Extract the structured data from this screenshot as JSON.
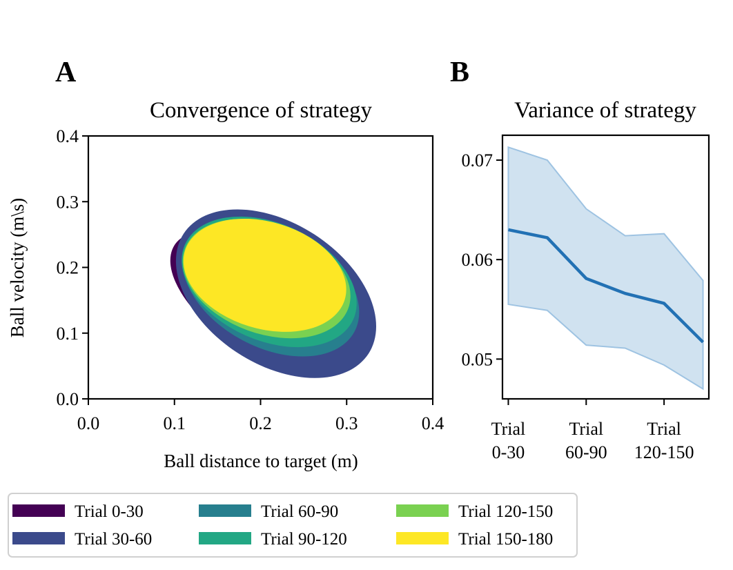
{
  "chart_data": [
    {
      "panel": "A",
      "type": "ellipse",
      "title": "Convergence of strategy",
      "xlabel": "Ball distance to target (m)",
      "ylabel": "Ball velocity (m\\s)",
      "xlim": [
        0.0,
        0.4
      ],
      "ylim": [
        0.0,
        0.4
      ],
      "xticks": [
        "0.0",
        "0.1",
        "0.2",
        "0.3",
        "0.4"
      ],
      "yticks": [
        "0.0",
        "0.1",
        "0.2",
        "0.3",
        "0.4"
      ],
      "series": [
        {
          "name": "Trial 0-30",
          "color": "#440154",
          "center": [
            0.205,
            0.145
          ],
          "semi_major": 0.125,
          "semi_minor": 0.06,
          "angle_deg": -33
        },
        {
          "name": "Trial 30-60",
          "color": "#3b4a8b",
          "center": [
            0.218,
            0.16
          ],
          "semi_major": 0.128,
          "semi_minor": 0.082,
          "angle_deg": -33
        },
        {
          "name": "Trial 60-90",
          "color": "#277f8e",
          "center": [
            0.212,
            0.17
          ],
          "semi_major": 0.11,
          "semi_minor": 0.07,
          "angle_deg": -28
        },
        {
          "name": "Trial 90-120",
          "color": "#22a784",
          "center": [
            0.21,
            0.178
          ],
          "semi_major": 0.107,
          "semi_minor": 0.068,
          "angle_deg": -24
        },
        {
          "name": "Trial 120-150",
          "color": "#7ad151",
          "center": [
            0.207,
            0.183
          ],
          "semi_major": 0.101,
          "semi_minor": 0.064,
          "angle_deg": -20
        },
        {
          "name": "Trial 150-180",
          "color": "#fde725",
          "center": [
            0.205,
            0.188
          ],
          "semi_major": 0.097,
          "semi_minor": 0.062,
          "angle_deg": -17
        }
      ]
    },
    {
      "panel": "B",
      "type": "line",
      "title": "Variance of strategy",
      "ylim": [
        0.046,
        0.0725
      ],
      "yticks": [
        "0.05",
        "0.06",
        "0.07"
      ],
      "xticks": [
        {
          "line1": "Trial",
          "line2": "0-30"
        },
        {
          "line1": "Trial",
          "line2": "60-90"
        },
        {
          "line1": "Trial",
          "line2": "120-150"
        }
      ],
      "x": [
        0,
        1,
        2,
        3,
        4,
        5
      ],
      "values": [
        0.063,
        0.0622,
        0.0581,
        0.0566,
        0.0556,
        0.0517
      ],
      "lower": [
        0.0555,
        0.0549,
        0.0514,
        0.0511,
        0.0494,
        0.047
      ],
      "upper": [
        0.0713,
        0.07,
        0.0651,
        0.0624,
        0.0626,
        0.0579
      ],
      "line_color": "#2271b4",
      "band_color": "#bcd6ea"
    }
  ],
  "legend": {
    "items": [
      {
        "label": "Trial 0-30",
        "color": "#440154"
      },
      {
        "label": "Trial 30-60",
        "color": "#3b4a8b"
      },
      {
        "label": "Trial 60-90",
        "color": "#277f8e"
      },
      {
        "label": "Trial 90-120",
        "color": "#22a784"
      },
      {
        "label": "Trial 120-150",
        "color": "#7ad151"
      },
      {
        "label": "Trial 150-180",
        "color": "#fde725"
      }
    ]
  }
}
